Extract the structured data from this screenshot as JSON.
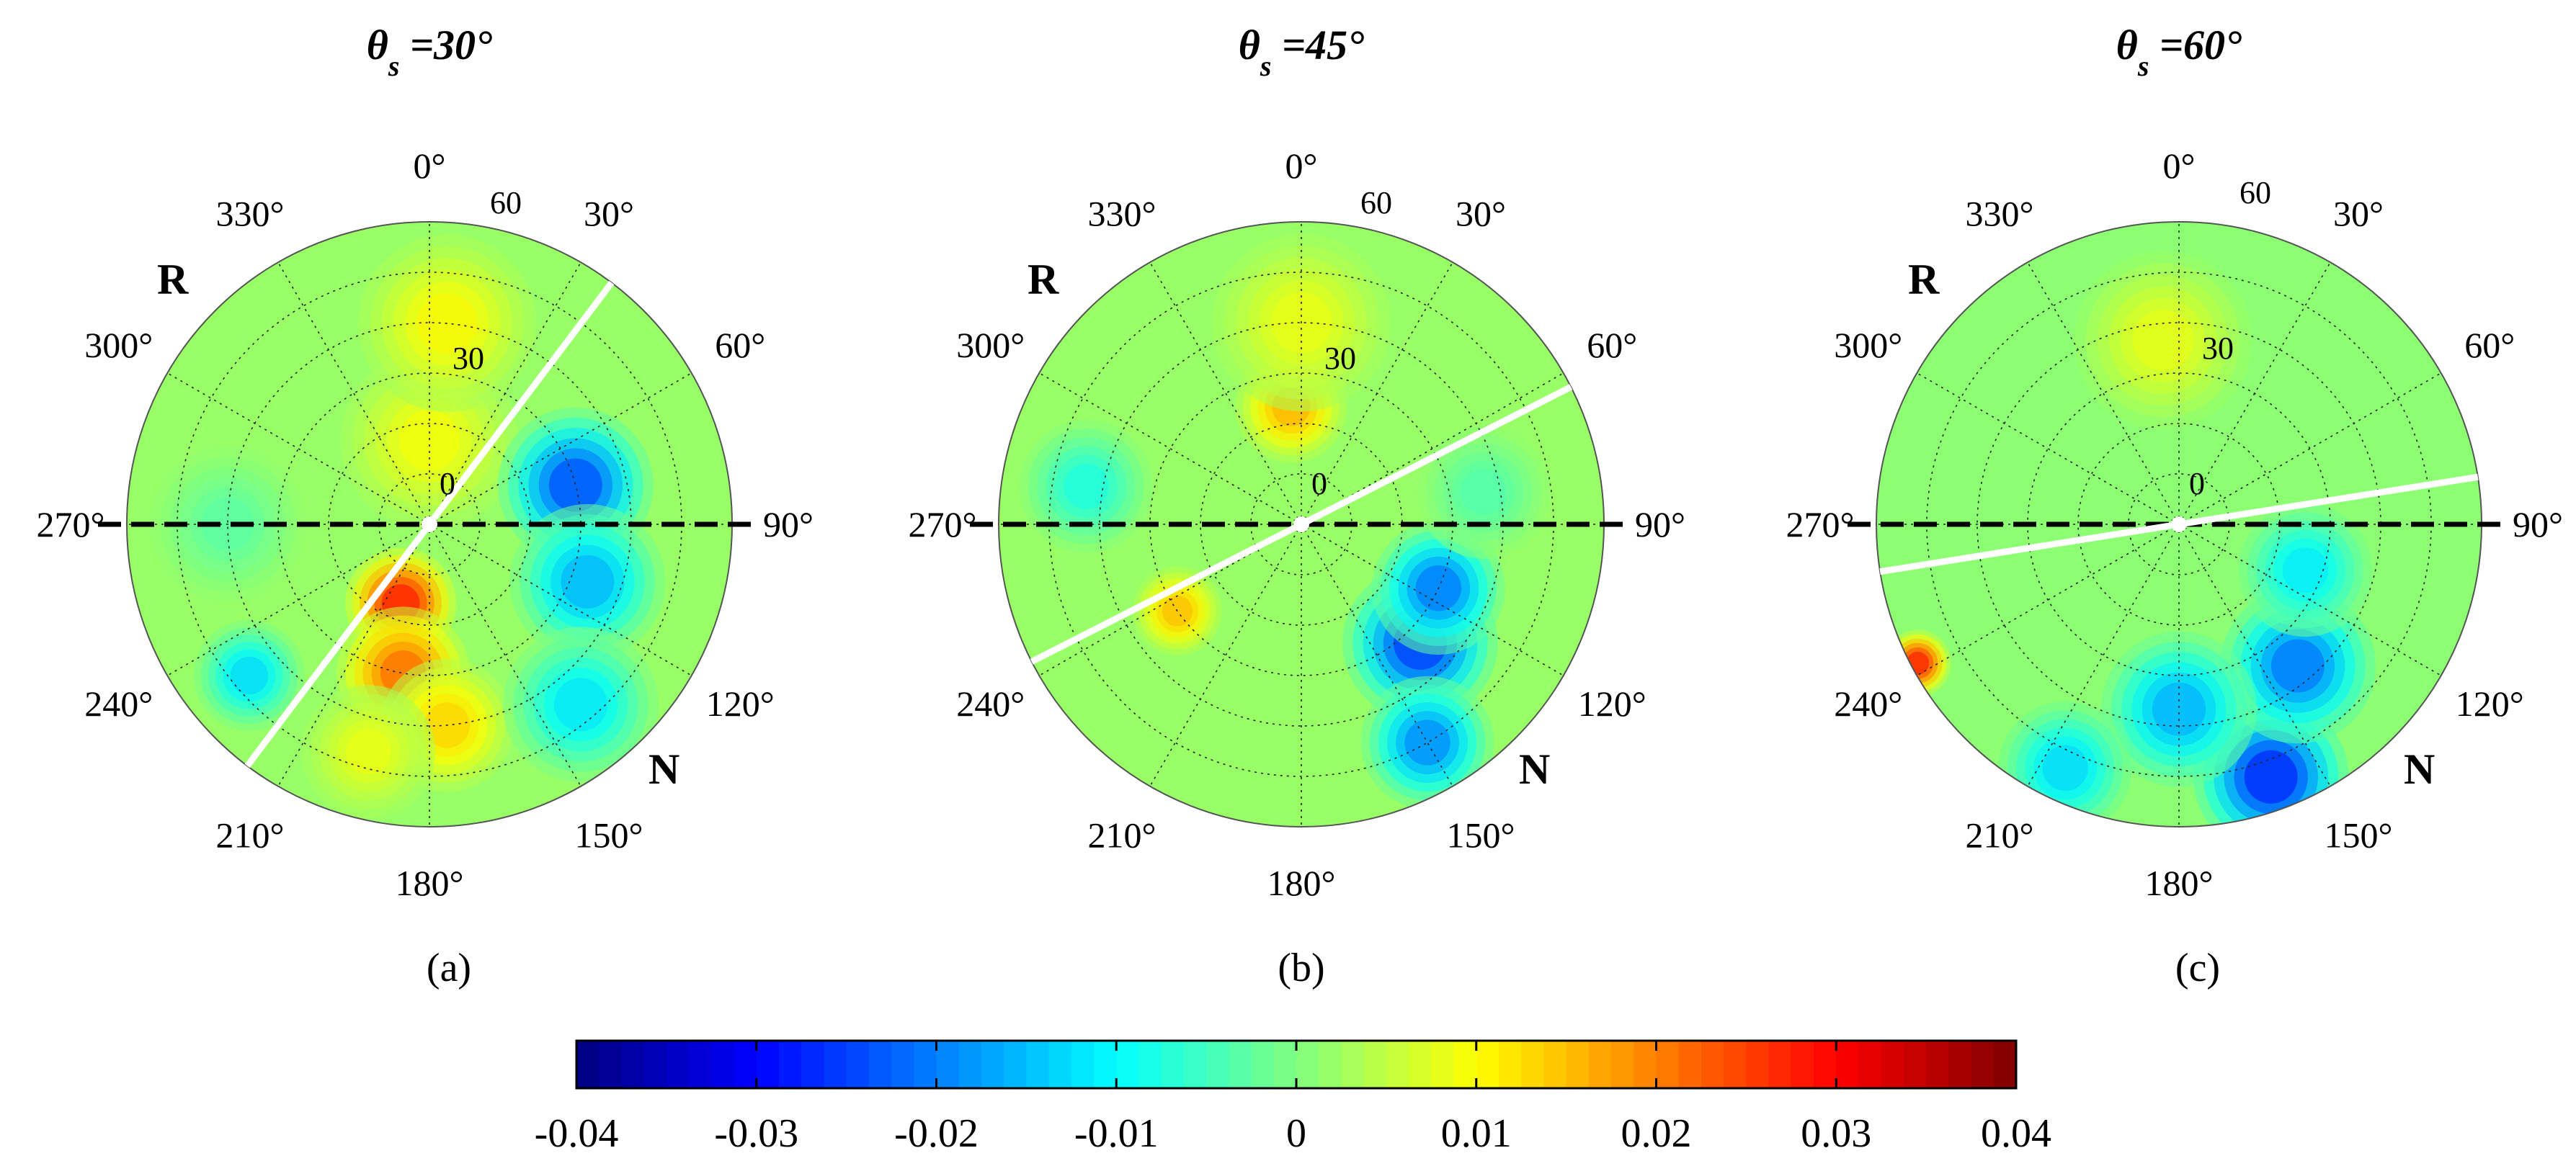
{
  "chart_data": {
    "type": "heatmap",
    "projection": "polar",
    "panels": [
      {
        "title_symbol": "θ",
        "title_subscript": "s",
        "title_value": " =30°",
        "panel_label": "(a)",
        "solar_zenith_deg": 30,
        "azimuth_labels": [
          "0°",
          "30°",
          "60°",
          "90°",
          "120°",
          "150°",
          "180°",
          "210°",
          "240°",
          "270°",
          "300°",
          "330°"
        ],
        "radial_ticks": [
          0,
          30,
          60
        ],
        "radial_max_deg": 90,
        "principal_plane_azimuth_deg": 37,
        "labels": {
          "R": "R",
          "N": "N"
        },
        "field_background": 0.002,
        "features": [
          {
            "azimuth": 200,
            "radius": 25,
            "value": 0.034,
            "spread": 10
          },
          {
            "azimuth": 190,
            "radius": 45,
            "value": 0.026,
            "spread": 12
          },
          {
            "azimuth": 175,
            "radius": 60,
            "value": 0.016,
            "spread": 12
          },
          {
            "azimuth": 195,
            "radius": 70,
            "value": 0.01,
            "spread": 12
          },
          {
            "azimuth": 0,
            "radius": 25,
            "value": 0.011,
            "spread": 16
          },
          {
            "azimuth": 5,
            "radius": 60,
            "value": 0.012,
            "spread": 16
          },
          {
            "azimuth": 75,
            "radius": 45,
            "value": -0.03,
            "spread": 14
          },
          {
            "azimuth": 110,
            "radius": 50,
            "value": -0.02,
            "spread": 14
          },
          {
            "azimuth": 140,
            "radius": 70,
            "value": -0.015,
            "spread": 14
          },
          {
            "azimuth": 230,
            "radius": 70,
            "value": -0.016,
            "spread": 10
          },
          {
            "azimuth": 270,
            "radius": 60,
            "value": -0.004,
            "spread": 14
          }
        ]
      },
      {
        "title_symbol": "θ",
        "title_subscript": "s",
        "title_value": " =45°",
        "panel_label": "(b)",
        "solar_zenith_deg": 45,
        "azimuth_labels": [
          "0°",
          "30°",
          "60°",
          "90°",
          "120°",
          "150°",
          "180°",
          "210°",
          "240°",
          "270°",
          "300°",
          "330°"
        ],
        "radial_ticks": [
          0,
          30,
          60
        ],
        "radial_max_deg": 90,
        "principal_plane_azimuth_deg": 63,
        "labels": {
          "R": "R",
          "N": "N"
        },
        "field_background": 0.002,
        "features": [
          {
            "azimuth": 355,
            "radius": 35,
            "value": 0.019,
            "spread": 10
          },
          {
            "azimuth": 0,
            "radius": 60,
            "value": 0.01,
            "spread": 16
          },
          {
            "azimuth": 235,
            "radius": 45,
            "value": 0.018,
            "spread": 8
          },
          {
            "azimuth": 135,
            "radius": 50,
            "value": -0.032,
            "spread": 14
          },
          {
            "azimuth": 115,
            "radius": 45,
            "value": -0.026,
            "spread": 12
          },
          {
            "azimuth": 150,
            "radius": 75,
            "value": -0.024,
            "spread": 12
          },
          {
            "azimuth": 280,
            "radius": 65,
            "value": -0.01,
            "spread": 12
          },
          {
            "azimuth": 80,
            "radius": 55,
            "value": -0.005,
            "spread": 12
          }
        ]
      },
      {
        "title_symbol": "θ",
        "title_subscript": "s",
        "title_value": " =60°",
        "panel_label": "(c)",
        "solar_zenith_deg": 60,
        "azimuth_labels": [
          "0°",
          "30°",
          "60°",
          "90°",
          "120°",
          "150°",
          "180°",
          "210°",
          "240°",
          "270°",
          "300°",
          "330°"
        ],
        "radial_ticks": [
          0,
          30,
          60
        ],
        "radial_max_deg": 90,
        "principal_plane_azimuth_deg": 81,
        "labels": {
          "R": "R",
          "N": "N"
        },
        "field_background": 0.001,
        "features": [
          {
            "azimuth": 242,
            "radius": 88,
            "value": 0.034,
            "spread": 6
          },
          {
            "azimuth": 355,
            "radius": 55,
            "value": 0.01,
            "spread": 16
          },
          {
            "azimuth": 160,
            "radius": 80,
            "value": -0.034,
            "spread": 14
          },
          {
            "azimuth": 140,
            "radius": 55,
            "value": -0.026,
            "spread": 14
          },
          {
            "azimuth": 180,
            "radius": 55,
            "value": -0.02,
            "spread": 14
          },
          {
            "azimuth": 205,
            "radius": 80,
            "value": -0.016,
            "spread": 12
          },
          {
            "azimuth": 110,
            "radius": 40,
            "value": -0.014,
            "spread": 12
          }
        ]
      }
    ],
    "colorbar": {
      "colormap": "jet",
      "min": -0.04,
      "max": 0.04,
      "tick_labels": [
        "-0.04",
        "-0.03",
        "-0.02",
        "-0.01",
        "0",
        "0.01",
        "0.02",
        "0.03",
        "0.04"
      ]
    },
    "colors": {
      "principal_plane_line": "#ffffff",
      "reference_axis_line": "#000000",
      "grid": "#222222"
    }
  }
}
